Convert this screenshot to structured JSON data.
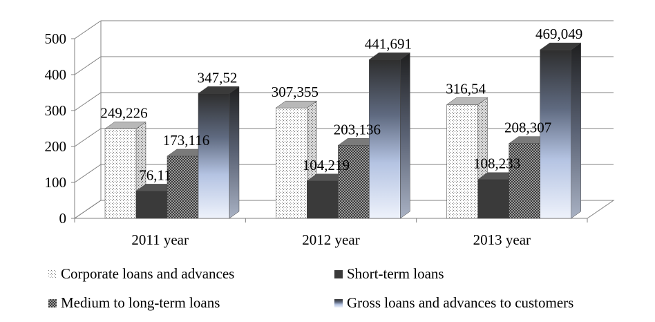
{
  "chart_data": {
    "type": "bar",
    "categories": [
      "2011 year",
      "2012 year",
      "2013 year"
    ],
    "series": [
      {
        "name": "Corporate loans and advances",
        "values": [
          249.226,
          307.355,
          316.54
        ],
        "labels": [
          "249,226",
          "307,355",
          "316,54"
        ],
        "pattern": "dots"
      },
      {
        "name": "Short-term loans",
        "values": [
          76.11,
          104.219,
          108.233
        ],
        "labels": [
          "76,11",
          "104,219",
          "108,233"
        ],
        "pattern": "dark"
      },
      {
        "name": "Medium to long-term loans",
        "values": [
          173.116,
          203.136,
          208.307
        ],
        "labels": [
          "173,116",
          "203,136",
          "208,307"
        ],
        "pattern": "checker"
      },
      {
        "name": "Gross loans and advances to customers",
        "values": [
          347.52,
          441.691,
          469.049
        ],
        "labels": [
          "347,52",
          "441,691",
          "469,049"
        ],
        "pattern": "gradient"
      }
    ],
    "y_ticks": [
      "0",
      "100",
      "200",
      "300",
      "400",
      "500"
    ],
    "ylim": [
      0,
      500
    ],
    "grid": true,
    "style": "3d",
    "legend_position": "bottom",
    "title": "",
    "xlabel": "",
    "ylabel": ""
  }
}
